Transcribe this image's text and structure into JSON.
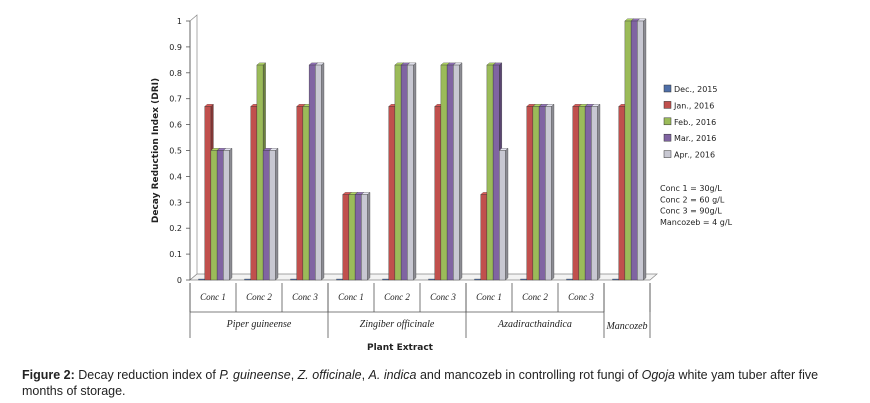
{
  "chart_data": {
    "type": "bar",
    "ylabel": "Decay Reduction Index (DRI)",
    "xlabel": "Plant Extract",
    "ylim": [
      0,
      1
    ],
    "yticks": [
      "0",
      "0.1",
      "0.2",
      "0.3",
      "0.4",
      "0.5",
      "0.6",
      "0.7",
      "0.8",
      "0.9",
      "1"
    ],
    "categories": [
      "Conc 1",
      "Conc 2",
      "Conc 3",
      "Conc 1",
      "Conc 2",
      "Conc 3",
      "Conc 1",
      "Conc 2",
      "Conc 3",
      ""
    ],
    "groups": [
      {
        "label": "Piper guineense",
        "span": 3
      },
      {
        "label": "Zingiber officinale",
        "span": 3
      },
      {
        "label": "Azadiracthaindica",
        "span": 3
      },
      {
        "label": "Mancozeb",
        "span": 1
      }
    ],
    "series": [
      {
        "name": "Dec., 2015",
        "color": "#4f6fa8",
        "values": [
          0,
          0,
          0,
          0,
          0,
          0,
          0,
          0,
          0,
          0
        ]
      },
      {
        "name": "Jan., 2016",
        "color": "#c0504d",
        "values": [
          0.67,
          0.67,
          0.67,
          0.33,
          0.67,
          0.67,
          0.33,
          0.67,
          0.67,
          0.67
        ]
      },
      {
        "name": "Feb., 2016",
        "color": "#9bbb59",
        "values": [
          0.5,
          0.83,
          0.67,
          0.33,
          0.83,
          0.83,
          0.83,
          0.67,
          0.67,
          1.0
        ]
      },
      {
        "name": "Mar., 2016",
        "color": "#8064a2",
        "values": [
          0.5,
          0.5,
          0.83,
          0.33,
          0.83,
          0.83,
          0.83,
          0.67,
          0.67,
          1.0
        ]
      },
      {
        "name": "Apr., 2016",
        "color": "#c8c8d2",
        "values": [
          0.5,
          0.5,
          0.83,
          0.33,
          0.83,
          0.83,
          0.5,
          0.67,
          0.67,
          1.0
        ]
      }
    ],
    "notes": [
      "Conc 1 = 30g/L",
      "Conc 2 = 60 g/L",
      "Conc 3 = 90g/L",
      "Mancozeb = 4 g/L"
    ],
    "legend_position": "right"
  },
  "caption": {
    "label": "Figure 2:",
    "parts": [
      {
        "text": " Decay reduction index of ",
        "italic": false
      },
      {
        "text": "P. guineense",
        "italic": true
      },
      {
        "text": ", ",
        "italic": false
      },
      {
        "text": "Z. officinale",
        "italic": true
      },
      {
        "text": ", ",
        "italic": false
      },
      {
        "text": "A. indica",
        "italic": true
      },
      {
        "text": " and mancozeb in controlling rot fungi of ",
        "italic": false
      },
      {
        "text": "Ogoja",
        "italic": true
      },
      {
        "text": " white yam tuber after five months of storage.",
        "italic": false
      }
    ]
  }
}
